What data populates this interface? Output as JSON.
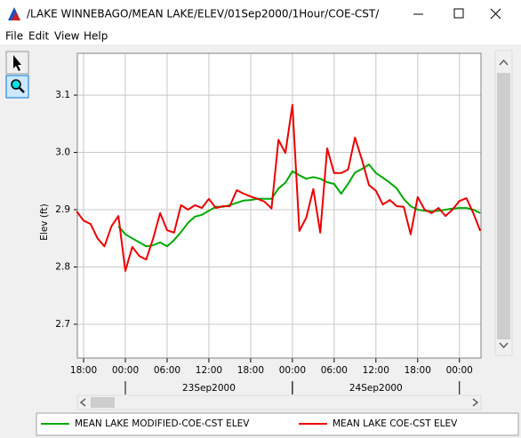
{
  "window": {
    "title": "/LAKE WINNEBAGO/MEAN LAKE/ELEV/01Sep2000/1Hour/COE-CST/"
  },
  "menu": [
    "File",
    "Edit",
    "View",
    "Help"
  ],
  "chart_data": {
    "type": "line",
    "ylabel": "Elev (ft)",
    "x": [
      -1,
      0,
      1,
      2,
      3,
      4,
      5,
      6,
      7,
      8,
      9,
      10,
      11,
      12,
      13,
      14,
      15,
      16,
      17,
      18,
      19,
      20,
      21,
      22,
      23,
      24,
      25,
      26,
      27,
      28,
      29,
      30,
      31,
      32,
      33,
      34,
      35,
      36,
      37,
      38,
      39,
      40,
      41,
      42,
      43,
      44,
      45,
      46,
      47,
      48,
      49,
      50,
      51,
      52,
      53,
      54,
      55,
      56,
      57
    ],
    "series": [
      {
        "name": "MEAN LAKE MODIFIED-COE-CST ELEV",
        "color": "#00aa00",
        "values": [
          null,
          null,
          null,
          null,
          null,
          null,
          2.871,
          2.857,
          2.85,
          2.843,
          2.836,
          2.838,
          2.843,
          2.836,
          2.847,
          2.861,
          2.877,
          2.888,
          2.891,
          2.898,
          2.905,
          2.905,
          2.908,
          2.912,
          2.916,
          2.917,
          2.919,
          2.919,
          2.919,
          2.937,
          2.947,
          2.967,
          2.96,
          2.954,
          2.957,
          2.954,
          2.948,
          2.945,
          2.928,
          2.945,
          2.965,
          2.971,
          2.979,
          2.964,
          2.956,
          2.947,
          2.937,
          2.919,
          2.906,
          2.9,
          2.898,
          2.897,
          2.898,
          2.9,
          2.902,
          2.903,
          2.903,
          2.9,
          2.894
        ]
      },
      {
        "name": "MEAN LAKE COE-CST ELEV",
        "color": "#ee0000",
        "values": [
          2.897,
          2.881,
          2.875,
          2.85,
          2.836,
          2.871,
          2.889,
          2.793,
          2.835,
          2.819,
          2.813,
          2.85,
          2.894,
          2.864,
          2.86,
          2.908,
          2.9,
          2.908,
          2.903,
          2.919,
          2.903,
          2.906,
          2.906,
          2.934,
          2.928,
          2.923,
          2.919,
          2.914,
          2.902,
          3.022,
          2.999,
          3.083,
          2.863,
          2.886,
          2.936,
          2.86,
          3.007,
          2.964,
          2.964,
          2.97,
          3.026,
          2.987,
          2.943,
          2.933,
          2.909,
          2.917,
          2.906,
          2.905,
          2.857,
          2.922,
          2.9,
          2.894,
          2.903,
          2.889,
          2.9,
          2.915,
          2.92,
          2.894,
          2.863
        ]
      }
    ],
    "xlim": [
      -0.9,
      57.1
    ],
    "xticks": [
      {
        "value": 0,
        "label": "18:00"
      },
      {
        "value": 6,
        "label": "00:00"
      },
      {
        "value": 12,
        "label": "06:00"
      },
      {
        "value": 18,
        "label": "12:00"
      },
      {
        "value": 24,
        "label": "18:00"
      },
      {
        "value": 30,
        "label": "00:00"
      },
      {
        "value": 36,
        "label": "06:00"
      },
      {
        "value": 42,
        "label": "12:00"
      },
      {
        "value": 48,
        "label": "18:00"
      },
      {
        "value": 54,
        "label": "00:00"
      }
    ],
    "days": [
      {
        "label": "23Sep2000",
        "start": 6,
        "end": 30
      },
      {
        "label": "24Sep2000",
        "start": 30,
        "end": 54
      }
    ],
    "ylim": [
      2.641,
      3.173
    ],
    "yticks": [
      2.7,
      2.8,
      2.9,
      {
        "value": 3,
        "label": "3.0"
      },
      3.1
    ],
    "grid": true
  }
}
